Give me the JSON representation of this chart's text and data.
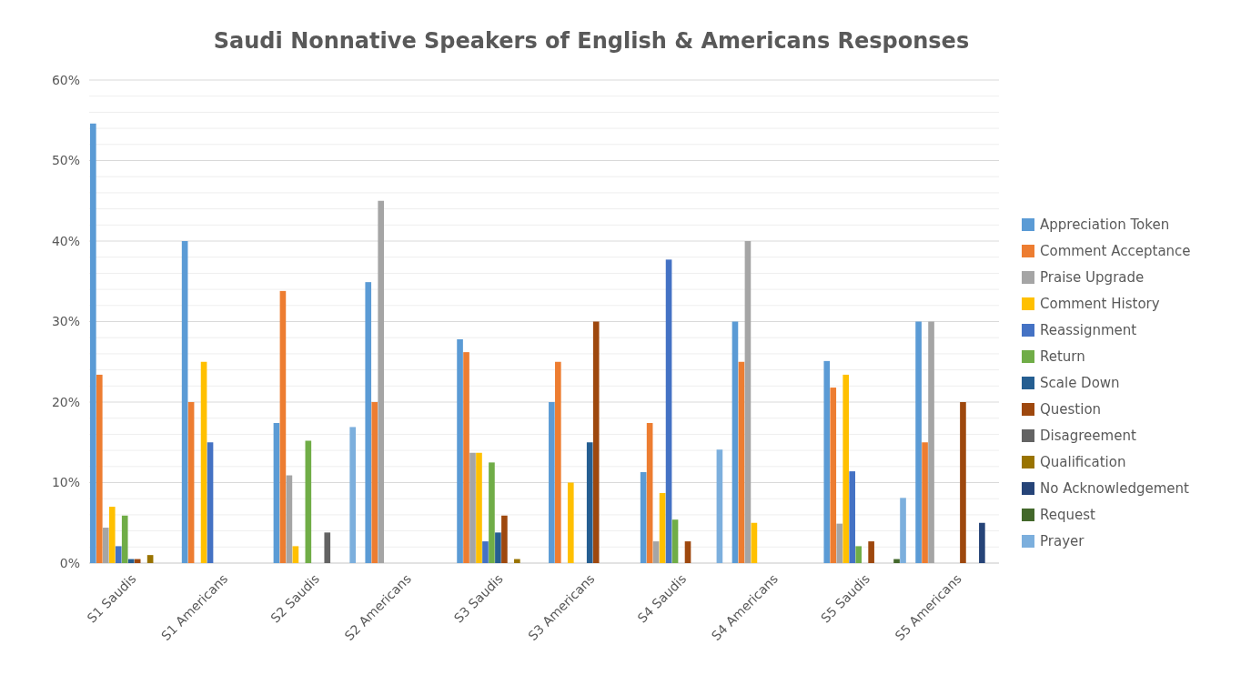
{
  "chart_data": {
    "type": "bar",
    "title": "Saudi Nonnative Speakers of English & Americans Responses",
    "categories": [
      "S1 Saudis",
      "S1 Americans",
      "S2 Saudis",
      "S2 Americans",
      "S3 Saudis",
      "S3 Americans",
      "S4 Saudis",
      "S4 Americans",
      "S5 Saudis",
      "S5 Americans"
    ],
    "series": [
      {
        "name": "Appreciation Token",
        "color": "#5b9bd5",
        "values": [
          54.6,
          40,
          17.4,
          34.9,
          27.8,
          20,
          11.3,
          30,
          25.1,
          30
        ]
      },
      {
        "name": "Comment Acceptance",
        "color": "#ed7d31",
        "values": [
          23.4,
          20,
          33.8,
          20,
          26.2,
          25,
          17.4,
          25,
          21.8,
          15
        ]
      },
      {
        "name": "Praise Upgrade",
        "color": "#a5a5a5",
        "values": [
          4.4,
          0,
          10.9,
          45,
          13.7,
          0,
          2.7,
          40,
          4.9,
          30
        ]
      },
      {
        "name": "Comment History",
        "color": "#ffc000",
        "values": [
          7,
          25,
          2.1,
          0,
          13.7,
          10,
          8.7,
          5,
          23.4,
          0
        ]
      },
      {
        "name": "Reassignment",
        "color": "#4472c4",
        "values": [
          2.1,
          15,
          0,
          0,
          2.7,
          0,
          37.7,
          0,
          11.4,
          0
        ]
      },
      {
        "name": "Return",
        "color": "#70ad47",
        "values": [
          5.9,
          0,
          15.2,
          0,
          12.5,
          0,
          5.4,
          0,
          2.1,
          0
        ]
      },
      {
        "name": "Scale Down",
        "color": "#255e91",
        "values": [
          0.5,
          0,
          0,
          0,
          3.8,
          15,
          0,
          0,
          0,
          0
        ]
      },
      {
        "name": "Question",
        "color": "#9e480e",
        "values": [
          0.5,
          0,
          0,
          0,
          5.9,
          30,
          2.7,
          0,
          2.7,
          20
        ]
      },
      {
        "name": "Disagreement",
        "color": "#636363",
        "values": [
          0,
          0,
          3.8,
          0,
          0,
          0,
          0,
          0,
          0,
          0
        ]
      },
      {
        "name": "Qualification",
        "color": "#997300",
        "values": [
          1,
          0,
          0,
          0,
          0.5,
          0,
          0,
          0,
          0,
          0
        ]
      },
      {
        "name": "No Acknowledgement",
        "color": "#264478",
        "values": [
          0,
          0,
          0,
          0,
          0,
          0,
          0,
          0,
          0,
          5
        ]
      },
      {
        "name": "Request",
        "color": "#43682b",
        "values": [
          0,
          0,
          0,
          0,
          0,
          0,
          0,
          0,
          0.5,
          0
        ]
      },
      {
        "name": "Prayer",
        "color": "#7cafdd",
        "values": [
          0,
          0,
          16.9,
          0,
          0,
          0,
          14.1,
          0,
          8.1,
          0
        ]
      }
    ],
    "ylim": [
      0,
      60
    ],
    "yticks": [
      {
        "value": 0,
        "label": "0%"
      },
      {
        "value": 2,
        "label": null
      },
      {
        "value": 4,
        "label": null
      },
      {
        "value": 6,
        "label": null
      },
      {
        "value": 8,
        "label": null
      },
      {
        "value": 10,
        "label": "10%"
      },
      {
        "value": 12,
        "label": null
      },
      {
        "value": 14,
        "label": null
      },
      {
        "value": 16,
        "label": null
      },
      {
        "value": 18,
        "label": null
      },
      {
        "value": 20,
        "label": "20%"
      },
      {
        "value": 22,
        "label": null
      },
      {
        "value": 24,
        "label": null
      },
      {
        "value": 26,
        "label": null
      },
      {
        "value": 28,
        "label": null
      },
      {
        "value": 30,
        "label": "30%"
      },
      {
        "value": 32,
        "label": null
      },
      {
        "value": 34,
        "label": null
      },
      {
        "value": 36,
        "label": null
      },
      {
        "value": 38,
        "label": null
      },
      {
        "value": 40,
        "label": "40%"
      },
      {
        "value": 42,
        "label": null
      },
      {
        "value": 44,
        "label": null
      },
      {
        "value": 46,
        "label": null
      },
      {
        "value": 48,
        "label": null
      },
      {
        "value": 50,
        "label": "50%"
      },
      {
        "value": 52,
        "label": null
      },
      {
        "value": 54,
        "label": null
      },
      {
        "value": 56,
        "label": null
      },
      {
        "value": 58,
        "label": null
      },
      {
        "value": 60,
        "label": "60%"
      }
    ],
    "grid": true,
    "legend": "right"
  }
}
